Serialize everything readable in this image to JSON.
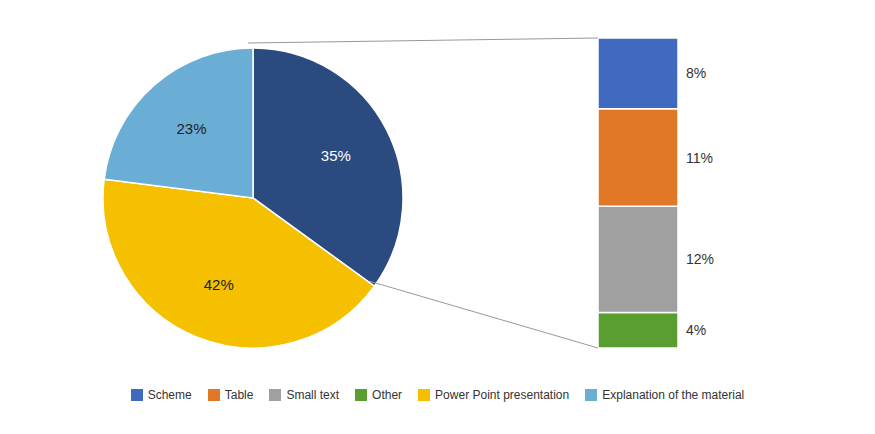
{
  "chart_data": [
    {
      "type": "pie",
      "categories": [
        null,
        "Power Point presentation",
        "Explanation of the material"
      ],
      "values": [
        35,
        42,
        23
      ],
      "value_labels": [
        "35%",
        "42%",
        "23%"
      ],
      "colors": [
        "#2b4a80",
        "#f5c000",
        "#6aaed6"
      ],
      "data_labels": true,
      "legend": "bottom"
    },
    {
      "type": "bar",
      "stacked": true,
      "categories": [
        null
      ],
      "series": [
        {
          "name": "Scheme",
          "color": "#3f6abf",
          "values": [
            8
          ],
          "value_labels": [
            "8%"
          ]
        },
        {
          "name": "Table",
          "color": "#e07828",
          "values": [
            11
          ],
          "value_labels": [
            "11%"
          ]
        },
        {
          "name": "Small text",
          "color": "#a0a0a0",
          "values": [
            12
          ],
          "value_labels": [
            "12%"
          ]
        },
        {
          "name": "Other",
          "color": "#5a9e32",
          "values": [
            4
          ],
          "value_labels": [
            "4%"
          ]
        }
      ],
      "ylim": [
        0,
        35
      ],
      "tick_labels": false,
      "data_labels": true,
      "legend": "bottom"
    }
  ]
}
